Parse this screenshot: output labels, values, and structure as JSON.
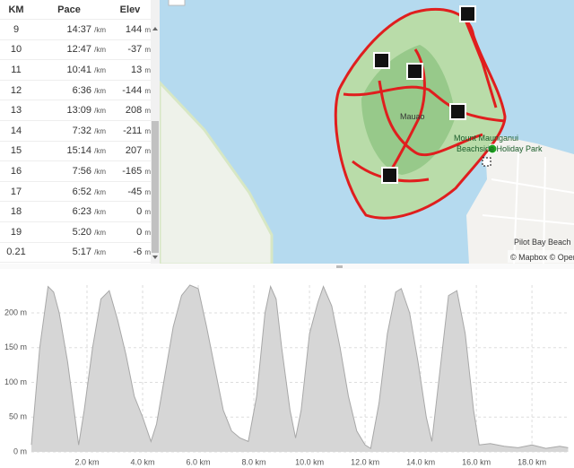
{
  "table": {
    "headers": [
      "KM",
      "Pace",
      "Elev"
    ],
    "rows": [
      {
        "km": "9",
        "pace": "14:37",
        "pace_unit": "/km",
        "elev": "144",
        "elev_unit": "m"
      },
      {
        "km": "10",
        "pace": "12:47",
        "pace_unit": "/km",
        "elev": "-37",
        "elev_unit": "m"
      },
      {
        "km": "11",
        "pace": "10:41",
        "pace_unit": "/km",
        "elev": "13",
        "elev_unit": "m"
      },
      {
        "km": "12",
        "pace": "6:36",
        "pace_unit": "/km",
        "elev": "-144",
        "elev_unit": "m"
      },
      {
        "km": "13",
        "pace": "13:09",
        "pace_unit": "/km",
        "elev": "208",
        "elev_unit": "m"
      },
      {
        "km": "14",
        "pace": "7:32",
        "pace_unit": "/km",
        "elev": "-211",
        "elev_unit": "m"
      },
      {
        "km": "15",
        "pace": "15:14",
        "pace_unit": "/km",
        "elev": "207",
        "elev_unit": "m"
      },
      {
        "km": "16",
        "pace": "7:56",
        "pace_unit": "/km",
        "elev": "-165",
        "elev_unit": "m"
      },
      {
        "km": "17",
        "pace": "6:52",
        "pace_unit": "/km",
        "elev": "-45",
        "elev_unit": "m"
      },
      {
        "km": "18",
        "pace": "6:23",
        "pace_unit": "/km",
        "elev": "0",
        "elev_unit": "m"
      },
      {
        "km": "19",
        "pace": "5:20",
        "pace_unit": "/km",
        "elev": "0",
        "elev_unit": "m"
      },
      {
        "km": "0.21",
        "pace": "5:17",
        "pace_unit": "/km",
        "elev": "-6",
        "elev_unit": "m"
      }
    ]
  },
  "map": {
    "labels": {
      "summit": "Mauao",
      "mount": "Mount Maunganui",
      "park": "Beachside Holiday Park",
      "beach": "Pilot Bay Beach",
      "attribution": "© Mapbox © Open"
    }
  },
  "chart_data": {
    "type": "area",
    "color": "#d6d6d6",
    "line_color": "#a8a8a8",
    "grid": true,
    "x": [
      0,
      0.3,
      0.6,
      0.8,
      1.0,
      1.3,
      1.5,
      1.7,
      1.9,
      2.2,
      2.5,
      2.8,
      3.1,
      3.4,
      3.7,
      4.0,
      4.3,
      4.5,
      4.8,
      5.1,
      5.4,
      5.7,
      6.0,
      6.3,
      6.6,
      6.9,
      7.2,
      7.5,
      7.8,
      8.1,
      8.4,
      8.6,
      8.8,
      9.0,
      9.3,
      9.5,
      9.7,
      10.0,
      10.3,
      10.5,
      10.8,
      11.1,
      11.4,
      11.7,
      12.0,
      12.2,
      12.5,
      12.8,
      13.1,
      13.3,
      13.6,
      13.9,
      14.2,
      14.4,
      14.7,
      15.0,
      15.3,
      15.6,
      15.9,
      16.1,
      16.5,
      17.0,
      17.5,
      18.0,
      18.5,
      19.0,
      19.3
    ],
    "values": [
      10,
      150,
      238,
      230,
      200,
      130,
      70,
      10,
      60,
      150,
      220,
      232,
      190,
      140,
      80,
      50,
      15,
      40,
      110,
      180,
      225,
      240,
      235,
      180,
      120,
      60,
      30,
      20,
      15,
      80,
      200,
      238,
      220,
      150,
      60,
      20,
      60,
      170,
      215,
      238,
      210,
      150,
      80,
      30,
      10,
      5,
      70,
      170,
      230,
      235,
      200,
      130,
      50,
      15,
      120,
      225,
      232,
      170,
      60,
      10,
      12,
      8,
      6,
      10,
      5,
      8,
      6
    ],
    "xlim": [
      0,
      19.35
    ],
    "ylim": [
      0,
      240
    ],
    "xticks": [
      {
        "value": 2,
        "label": "2.0 km"
      },
      {
        "value": 4,
        "label": "4.0 km"
      },
      {
        "value": 6,
        "label": "6.0 km"
      },
      {
        "value": 8,
        "label": "8.0 km"
      },
      {
        "value": 10,
        "label": "10.0 km"
      },
      {
        "value": 12,
        "label": "12.0 km"
      },
      {
        "value": 14,
        "label": "14.0 km"
      },
      {
        "value": 16,
        "label": "16.0 km"
      },
      {
        "value": 18,
        "label": "18.0 km"
      }
    ],
    "yticks": [
      {
        "value": 0,
        "label": "0 m"
      },
      {
        "value": 50,
        "label": "50 m"
      },
      {
        "value": 100,
        "label": "100 m"
      },
      {
        "value": 150,
        "label": "150 m"
      },
      {
        "value": 200,
        "label": "200 m"
      }
    ]
  }
}
